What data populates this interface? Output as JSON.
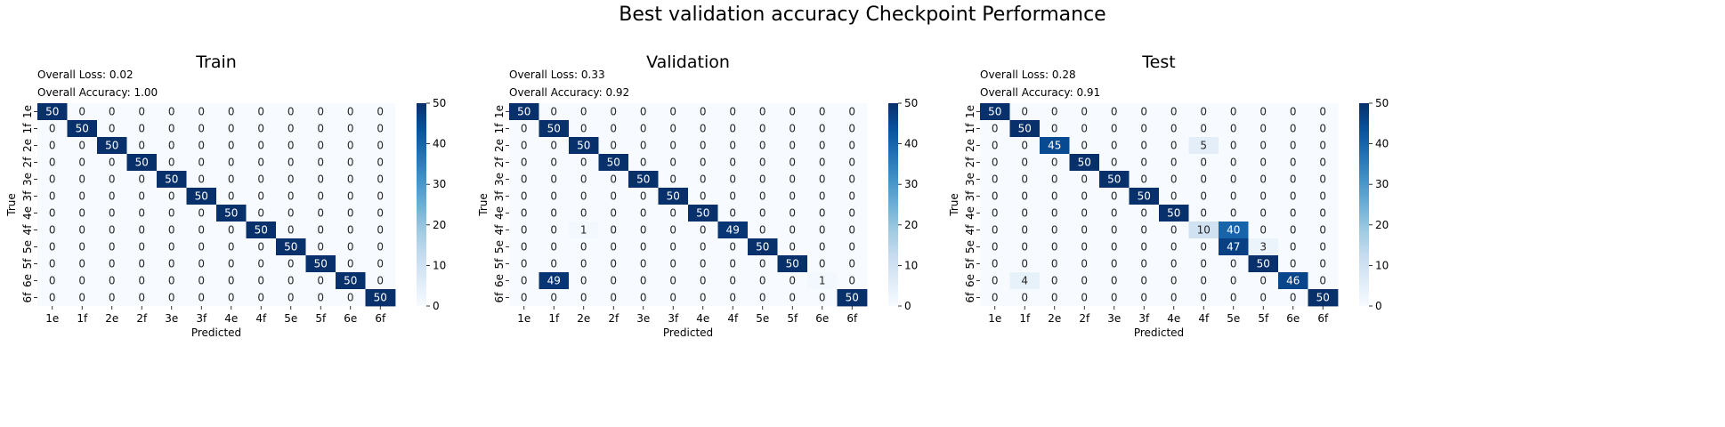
{
  "figure": {
    "title": "Best validation accuracy Checkpoint Performance"
  },
  "colormap": {
    "name": "Blues",
    "stops": [
      "#f7fbff",
      "#deebf7",
      "#c6dbef",
      "#9ecae1",
      "#6baed6",
      "#4292c6",
      "#2171b5",
      "#08519c",
      "#08306b"
    ],
    "text_light": "#ffffff",
    "text_dark": "#262626"
  },
  "chart_data": [
    {
      "type": "heatmap",
      "title": "Train",
      "annotations": [
        "Overall Loss: 0.02",
        "Overall Accuracy: 1.00"
      ],
      "xlabel": "Predicted",
      "ylabel": "True",
      "x_categories": [
        "1e",
        "1f",
        "2e",
        "2f",
        "3e",
        "3f",
        "4e",
        "4f",
        "5e",
        "5f",
        "6e",
        "6f"
      ],
      "y_categories": [
        "1e",
        "1f",
        "2e",
        "2f",
        "3e",
        "3f",
        "4e",
        "4f",
        "5e",
        "5f",
        "6e",
        "6f"
      ],
      "colorbar": {
        "min": 0,
        "max": 50,
        "ticks": [
          0,
          10,
          20,
          30,
          40,
          50
        ]
      },
      "matrix": [
        [
          50,
          0,
          0,
          0,
          0,
          0,
          0,
          0,
          0,
          0,
          0,
          0
        ],
        [
          0,
          50,
          0,
          0,
          0,
          0,
          0,
          0,
          0,
          0,
          0,
          0
        ],
        [
          0,
          0,
          50,
          0,
          0,
          0,
          0,
          0,
          0,
          0,
          0,
          0
        ],
        [
          0,
          0,
          0,
          50,
          0,
          0,
          0,
          0,
          0,
          0,
          0,
          0
        ],
        [
          0,
          0,
          0,
          0,
          50,
          0,
          0,
          0,
          0,
          0,
          0,
          0
        ],
        [
          0,
          0,
          0,
          0,
          0,
          50,
          0,
          0,
          0,
          0,
          0,
          0
        ],
        [
          0,
          0,
          0,
          0,
          0,
          0,
          50,
          0,
          0,
          0,
          0,
          0
        ],
        [
          0,
          0,
          0,
          0,
          0,
          0,
          0,
          50,
          0,
          0,
          0,
          0
        ],
        [
          0,
          0,
          0,
          0,
          0,
          0,
          0,
          0,
          50,
          0,
          0,
          0
        ],
        [
          0,
          0,
          0,
          0,
          0,
          0,
          0,
          0,
          0,
          50,
          0,
          0
        ],
        [
          0,
          0,
          0,
          0,
          0,
          0,
          0,
          0,
          0,
          0,
          50,
          0
        ],
        [
          0,
          0,
          0,
          0,
          0,
          0,
          0,
          0,
          0,
          0,
          0,
          50
        ]
      ]
    },
    {
      "type": "heatmap",
      "title": "Validation",
      "annotations": [
        "Overall Loss: 0.33",
        "Overall Accuracy: 0.92"
      ],
      "xlabel": "Predicted",
      "ylabel": "True",
      "x_categories": [
        "1e",
        "1f",
        "2e",
        "2f",
        "3e",
        "3f",
        "4e",
        "4f",
        "5e",
        "5f",
        "6e",
        "6f"
      ],
      "y_categories": [
        "1e",
        "1f",
        "2e",
        "2f",
        "3e",
        "3f",
        "4e",
        "4f",
        "5e",
        "5f",
        "6e",
        "6f"
      ],
      "colorbar": {
        "min": 0,
        "max": 50,
        "ticks": [
          0,
          10,
          20,
          30,
          40,
          50
        ]
      },
      "matrix": [
        [
          50,
          0,
          0,
          0,
          0,
          0,
          0,
          0,
          0,
          0,
          0,
          0
        ],
        [
          0,
          50,
          0,
          0,
          0,
          0,
          0,
          0,
          0,
          0,
          0,
          0
        ],
        [
          0,
          0,
          50,
          0,
          0,
          0,
          0,
          0,
          0,
          0,
          0,
          0
        ],
        [
          0,
          0,
          0,
          50,
          0,
          0,
          0,
          0,
          0,
          0,
          0,
          0
        ],
        [
          0,
          0,
          0,
          0,
          50,
          0,
          0,
          0,
          0,
          0,
          0,
          0
        ],
        [
          0,
          0,
          0,
          0,
          0,
          50,
          0,
          0,
          0,
          0,
          0,
          0
        ],
        [
          0,
          0,
          0,
          0,
          0,
          0,
          50,
          0,
          0,
          0,
          0,
          0
        ],
        [
          0,
          0,
          1,
          0,
          0,
          0,
          0,
          49,
          0,
          0,
          0,
          0
        ],
        [
          0,
          0,
          0,
          0,
          0,
          0,
          0,
          0,
          50,
          0,
          0,
          0
        ],
        [
          0,
          0,
          0,
          0,
          0,
          0,
          0,
          0,
          0,
          50,
          0,
          0
        ],
        [
          0,
          49,
          0,
          0,
          0,
          0,
          0,
          0,
          0,
          0,
          1,
          0
        ],
        [
          0,
          0,
          0,
          0,
          0,
          0,
          0,
          0,
          0,
          0,
          0,
          50
        ]
      ]
    },
    {
      "type": "heatmap",
      "title": "Test",
      "annotations": [
        "Overall Loss: 0.28",
        "Overall Accuracy: 0.91"
      ],
      "xlabel": "Predicted",
      "ylabel": "True",
      "x_categories": [
        "1e",
        "1f",
        "2e",
        "2f",
        "3e",
        "3f",
        "4e",
        "4f",
        "5e",
        "5f",
        "6e",
        "6f"
      ],
      "y_categories": [
        "1e",
        "1f",
        "2e",
        "2f",
        "3e",
        "3f",
        "4e",
        "4f",
        "5e",
        "5f",
        "6e",
        "6f"
      ],
      "colorbar": {
        "min": 0,
        "max": 50,
        "ticks": [
          0,
          10,
          20,
          30,
          40,
          50
        ]
      },
      "matrix": [
        [
          50,
          0,
          0,
          0,
          0,
          0,
          0,
          0,
          0,
          0,
          0,
          0
        ],
        [
          0,
          50,
          0,
          0,
          0,
          0,
          0,
          0,
          0,
          0,
          0,
          0
        ],
        [
          0,
          0,
          45,
          0,
          0,
          0,
          0,
          5,
          0,
          0,
          0,
          0
        ],
        [
          0,
          0,
          0,
          50,
          0,
          0,
          0,
          0,
          0,
          0,
          0,
          0
        ],
        [
          0,
          0,
          0,
          0,
          50,
          0,
          0,
          0,
          0,
          0,
          0,
          0
        ],
        [
          0,
          0,
          0,
          0,
          0,
          50,
          0,
          0,
          0,
          0,
          0,
          0
        ],
        [
          0,
          0,
          0,
          0,
          0,
          0,
          50,
          0,
          0,
          0,
          0,
          0
        ],
        [
          0,
          0,
          0,
          0,
          0,
          0,
          0,
          10,
          40,
          0,
          0,
          0
        ],
        [
          0,
          0,
          0,
          0,
          0,
          0,
          0,
          0,
          47,
          3,
          0,
          0
        ],
        [
          0,
          0,
          0,
          0,
          0,
          0,
          0,
          0,
          0,
          50,
          0,
          0
        ],
        [
          0,
          4,
          0,
          0,
          0,
          0,
          0,
          0,
          0,
          0,
          46,
          0
        ],
        [
          0,
          0,
          0,
          0,
          0,
          0,
          0,
          0,
          0,
          0,
          0,
          50
        ]
      ]
    }
  ]
}
